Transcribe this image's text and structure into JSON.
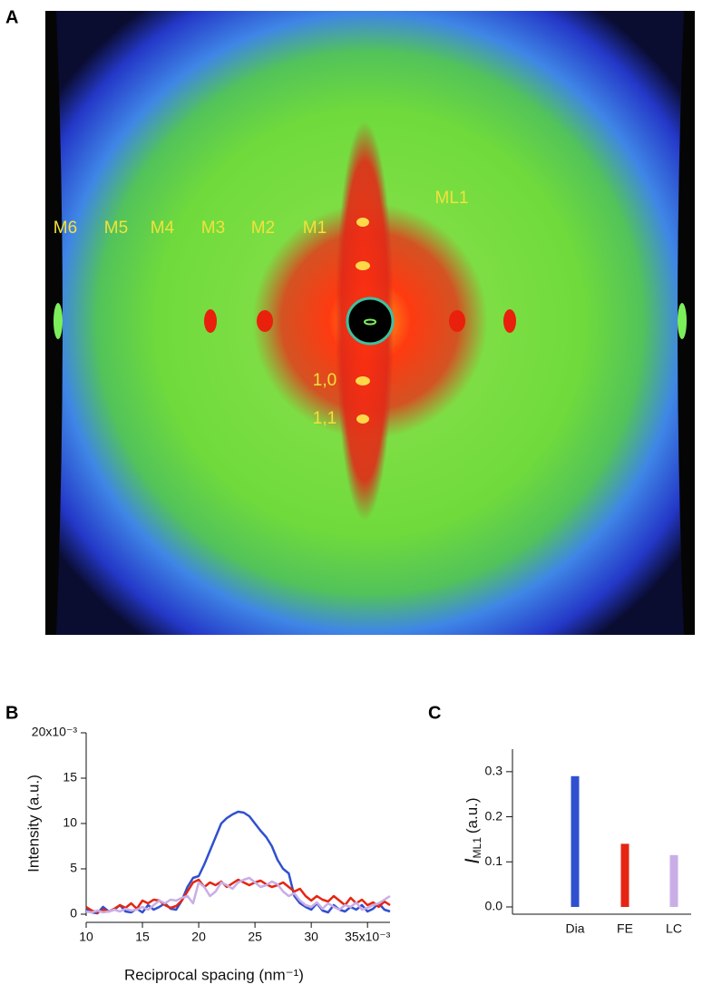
{
  "panel_labels": [
    "A",
    "B",
    "C"
  ],
  "image_annotations": [
    "M6",
    "M5",
    "M4",
    "M3",
    "M2",
    "M1",
    "ML1",
    "1,0",
    "1,1"
  ],
  "chart_data": [
    {
      "type": "line",
      "x_label": "Reciprocal spacing (nm⁻¹)",
      "y_label": "Intensity (a.u.)",
      "x": [
        10,
        10.5,
        11,
        11.5,
        12,
        12.5,
        13,
        13.5,
        14,
        14.5,
        15,
        15.5,
        16,
        16.5,
        17,
        17.5,
        18,
        18.5,
        19,
        19.5,
        20,
        20.5,
        21,
        21.5,
        22,
        22.5,
        23,
        23.5,
        24,
        24.5,
        25,
        25.5,
        26,
        26.5,
        27,
        27.5,
        28,
        28.5,
        29,
        29.5,
        30,
        30.5,
        31,
        31.5,
        32,
        32.5,
        33,
        33.5,
        34,
        34.5,
        35,
        35.5,
        36,
        36.5,
        37
      ],
      "series": [
        {
          "color": "#3050d0",
          "values": [
            0.5,
            0.2,
            0.1,
            0.8,
            0.3,
            0.5,
            1,
            0.3,
            0.2,
            0.6,
            0.2,
            1,
            0.5,
            0.8,
            1.2,
            0.6,
            0.5,
            1.5,
            3,
            4,
            4.2,
            5.5,
            7,
            8.5,
            10,
            10.6,
            11,
            11.3,
            11.2,
            10.8,
            10,
            9.2,
            8.5,
            7.5,
            6,
            5,
            4.5,
            2,
            1.2,
            0.8,
            0.5,
            1.2,
            0.4,
            0.2,
            1,
            0.5,
            0.3,
            0.8,
            0.5,
            1,
            0.3,
            0.6,
            1.2,
            0.5,
            0.3
          ]
        },
        {
          "color": "#e52512",
          "values": [
            0.8,
            0.4,
            0.2,
            0.5,
            0.3,
            0.6,
            1,
            0.7,
            1.2,
            0.6,
            1.5,
            1.2,
            1.6,
            1.5,
            1,
            0.7,
            0.9,
            1.5,
            2.5,
            3.5,
            3.8,
            3,
            3.5,
            3.2,
            3.6,
            3,
            3.4,
            3.8,
            3.5,
            3.2,
            3.5,
            3.7,
            3.3,
            3,
            3.2,
            3.5,
            3,
            2.5,
            2.8,
            2,
            1.5,
            2,
            1.6,
            1.4,
            2,
            1.5,
            1,
            1.8,
            1.2,
            1.6,
            1,
            1.3,
            0.8,
            1.4,
            1
          ]
        },
        {
          "color": "#c9aee6",
          "values": [
            0.3,
            0.2,
            0.4,
            0.2,
            0.3,
            0.5,
            0.3,
            0.6,
            0.4,
            0.5,
            0.8,
            0.5,
            1,
            1.5,
            1.2,
            1.6,
            1.5,
            1.8,
            2,
            1.2,
            3.5,
            3,
            2,
            2.5,
            3.5,
            3.2,
            2.8,
            3.5,
            3.8,
            4,
            3.5,
            3,
            3.2,
            3.6,
            3.3,
            2.5,
            2,
            2.3,
            1.5,
            1,
            0.8,
            1.3,
            0.6,
            1.2,
            0.8,
            0.5,
            1,
            0.8,
            1.3,
            0.5,
            0.7,
            1,
            1.2,
            1.6,
            2
          ]
        }
      ],
      "xlim": [
        10,
        37
      ],
      "xticks": [
        10,
        15,
        20,
        25,
        30,
        {
          "value": 35,
          "label": "35x10⁻³"
        }
      ],
      "ylim": [
        0,
        20
      ],
      "yticks": [
        0,
        5,
        10,
        15,
        {
          "value": 20,
          "label": "20x10⁻³"
        }
      ]
    },
    {
      "type": "bar",
      "y_label": "I",
      "y_label_subscript": "ML1",
      "y_label_unit": "(a.u.)",
      "categories": [
        "Dia",
        "FE",
        "LC"
      ],
      "values": [
        0.29,
        0.14,
        0.115
      ],
      "colors": [
        "#3050d0",
        "#e52512",
        "#c9aee6"
      ],
      "ylim": [
        0,
        0.35
      ],
      "yticks": [
        {
          "value": 0,
          "label": "0.0"
        },
        0.1,
        0.2,
        0.3
      ]
    }
  ]
}
